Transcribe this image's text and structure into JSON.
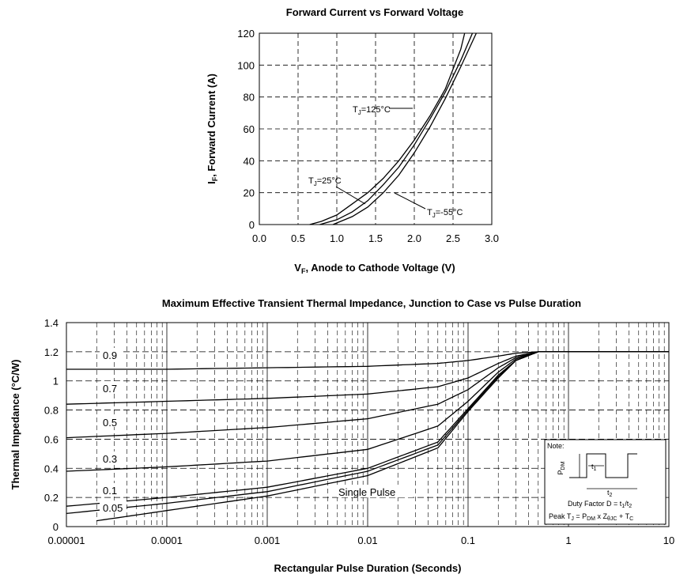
{
  "chart_data": [
    {
      "type": "line",
      "title": "Forward Current vs Forward Voltage",
      "xlabel_main": "V",
      "xlabel_sub": "F",
      "xlabel_rest": ", Anode to Cathode Voltage (V)",
      "ylabel_main": "I",
      "ylabel_sub": "F",
      "ylabel_rest": ", Forward Current (A)",
      "xlim": [
        0.0,
        3.0
      ],
      "ylim": [
        0,
        120
      ],
      "x_ticks": [
        "0.0",
        "0.5",
        "1.0",
        "1.5",
        "2.0",
        "2.5",
        "3.0"
      ],
      "y_ticks": [
        "0",
        "20",
        "40",
        "60",
        "80",
        "100",
        "120"
      ],
      "grid": true,
      "series": [
        {
          "name": "T_J=125°C",
          "label_parts": [
            "T",
            "J",
            "=125°C"
          ],
          "x": [
            0.65,
            0.8,
            1.0,
            1.2,
            1.4,
            1.6,
            1.8,
            2.0,
            2.2,
            2.4,
            2.6,
            2.65
          ],
          "y": [
            0,
            2,
            6,
            13,
            20,
            29,
            40,
            53,
            68,
            85,
            110,
            120
          ]
        },
        {
          "name": "T_J=25°C",
          "label_parts": [
            "T",
            "J",
            "=25°C"
          ],
          "x": [
            0.78,
            1.0,
            1.2,
            1.4,
            1.6,
            1.8,
            2.0,
            2.2,
            2.4,
            2.6,
            2.75
          ],
          "y": [
            0,
            3,
            8,
            15,
            25,
            36,
            50,
            66,
            83,
            103,
            120
          ]
        },
        {
          "name": "T_J=-55°C",
          "label_parts": [
            "T",
            "J",
            "=-55°C"
          ],
          "x": [
            0.95,
            1.2,
            1.4,
            1.6,
            1.8,
            2.0,
            2.2,
            2.4,
            2.6,
            2.8
          ],
          "y": [
            0,
            5,
            11,
            20,
            31,
            45,
            61,
            79,
            99,
            120
          ]
        }
      ]
    },
    {
      "type": "line",
      "title": "Maximum Effective Transient Thermal Impedance, Junction to Case vs Pulse Duration",
      "xlabel": "Rectangular Pulse Duration  (Seconds)",
      "ylabel": "Thermal Impedance (°C/W)",
      "x_scale": "log",
      "xlim": [
        1e-05,
        10
      ],
      "ylim": [
        0,
        1.4
      ],
      "x_ticks": [
        "0.00001",
        "0.0001",
        "0.001",
        "0.01",
        "0.1",
        "1",
        "10"
      ],
      "y_ticks": [
        "0",
        "0.2",
        "0.4",
        "0.6",
        "0.8",
        "1",
        "1.2",
        "1.4"
      ],
      "grid": true,
      "series": [
        {
          "name": "0.9",
          "x": [
            1e-05,
            0.0001,
            0.001,
            0.01,
            0.05,
            0.1,
            0.2,
            0.3,
            0.5,
            1,
            10
          ],
          "y": [
            1.08,
            1.08,
            1.09,
            1.1,
            1.12,
            1.14,
            1.17,
            1.19,
            1.2,
            1.2,
            1.2
          ]
        },
        {
          "name": "0.7",
          "x": [
            1e-05,
            0.0001,
            0.001,
            0.01,
            0.05,
            0.1,
            0.2,
            0.3,
            0.5,
            1,
            10
          ],
          "y": [
            0.84,
            0.86,
            0.88,
            0.91,
            0.96,
            1.02,
            1.12,
            1.17,
            1.2,
            1.2,
            1.2
          ]
        },
        {
          "name": "0.5",
          "x": [
            1e-05,
            0.0001,
            0.001,
            0.01,
            0.05,
            0.1,
            0.2,
            0.3,
            0.5,
            1,
            10
          ],
          "y": [
            0.61,
            0.64,
            0.68,
            0.74,
            0.84,
            0.94,
            1.09,
            1.16,
            1.2,
            1.2,
            1.2
          ]
        },
        {
          "name": "0.3",
          "x": [
            1e-05,
            0.0001,
            0.001,
            0.01,
            0.05,
            0.1,
            0.2,
            0.3,
            0.5,
            1,
            10
          ],
          "y": [
            0.38,
            0.41,
            0.45,
            0.53,
            0.69,
            0.86,
            1.06,
            1.15,
            1.2,
            1.2,
            1.2
          ]
        },
        {
          "name": "0.1",
          "x": [
            1e-05,
            0.0001,
            0.001,
            0.01,
            0.05,
            0.1,
            0.2,
            0.3,
            0.5,
            1,
            10
          ],
          "y": [
            0.14,
            0.2,
            0.27,
            0.4,
            0.58,
            0.81,
            1.04,
            1.14,
            1.2,
            1.2,
            1.2
          ]
        },
        {
          "name": "0.05",
          "x": [
            1e-05,
            0.0001,
            0.001,
            0.01,
            0.05,
            0.1,
            0.2,
            0.3,
            0.5,
            1,
            10
          ],
          "y": [
            0.09,
            0.16,
            0.24,
            0.38,
            0.56,
            0.8,
            1.03,
            1.14,
            1.2,
            1.2,
            1.2
          ]
        },
        {
          "name": "Single Pulse",
          "x": [
            2e-05,
            0.0001,
            0.001,
            0.01,
            0.05,
            0.1,
            0.2,
            0.3,
            0.5,
            1,
            10
          ],
          "y": [
            0.04,
            0.11,
            0.21,
            0.35,
            0.54,
            0.79,
            1.02,
            1.14,
            1.2,
            1.2,
            1.2
          ]
        }
      ],
      "note": {
        "heading": "Note:",
        "pdm_main": "P",
        "pdm_sub": "DM",
        "t1_main": "t",
        "t1_sub": "1",
        "t2_main": "t",
        "t2_sub": "2",
        "duty_text": "Duty Factor  D = t",
        "duty_sub1": "1",
        "duty_slash": "/t",
        "duty_sub2": "2",
        "peak_text": "Peak T",
        "peak_sub_j": "J",
        "peak_eq": " = P",
        "peak_sub_dm": "DM",
        "peak_x": " x Z",
        "peak_sub_z": "θJC",
        "peak_plus": " + T",
        "peak_sub_c": "C"
      }
    }
  ]
}
